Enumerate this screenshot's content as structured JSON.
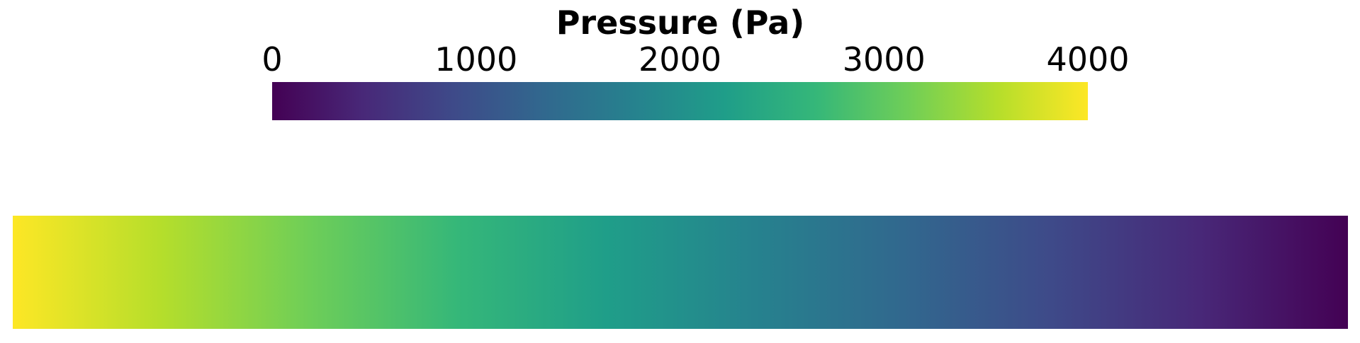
{
  "chart_data": {
    "type": "heatmap",
    "title": "Pressure (Pa)",
    "colormap": "viridis",
    "range": [
      0,
      4000
    ],
    "ticks": [
      0,
      1000,
      2000,
      3000,
      4000
    ],
    "tick_labels": [
      "0",
      "1000",
      "2000",
      "3000",
      "4000"
    ],
    "colorbar_stops": [
      "#440154",
      "#482878",
      "#3e4a89",
      "#31688e",
      "#26828e",
      "#1f9e89",
      "#35b779",
      "#6ece58",
      "#b5de2b",
      "#fde725"
    ],
    "field": {
      "orientation": "horizontal",
      "value_left": 4000,
      "value_right": 0
    }
  }
}
